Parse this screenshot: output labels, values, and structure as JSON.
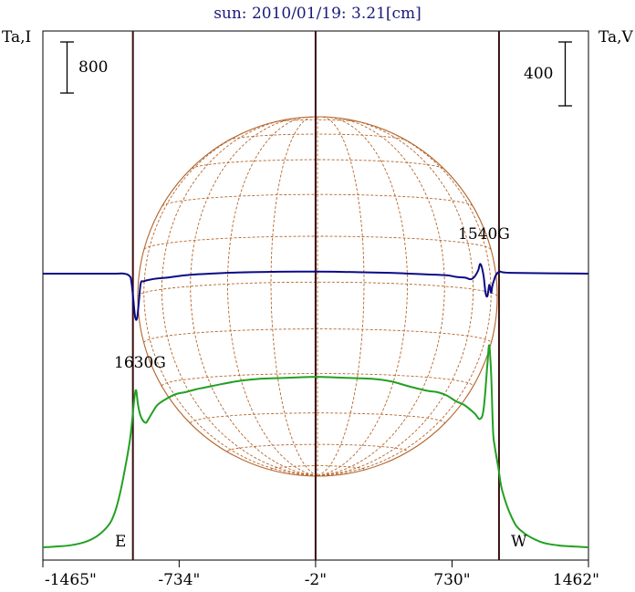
{
  "chart_data": {
    "type": "line",
    "title": "sun: 2010/01/19: 3.21[cm]",
    "ylabel_left": "Ta,I",
    "ylabel_right": "Ta,V",
    "scale_bar_left": "800",
    "scale_bar_right": "400",
    "x_ticks": [
      {
        "value": -1465,
        "label": "-1465\""
      },
      {
        "value": -734,
        "label": "-734\""
      },
      {
        "value": -2,
        "label": "-2\""
      },
      {
        "value": 730,
        "label": "730\""
      },
      {
        "value": 1462,
        "label": "1462\""
      }
    ],
    "xlim": [
      -1465,
      1462
    ],
    "limb_markers": {
      "east": "E",
      "west": "W"
    },
    "limb_positions": [
      -982,
      982
    ],
    "annotations": [
      {
        "text": "1630G",
        "x": -975
      },
      {
        "text": "1540G",
        "x": 917
      }
    ],
    "colors": {
      "intensity": "#22a022",
      "polarization": "#0b0b86",
      "grid": "#b5652c",
      "limb_line": "#3a0e0e",
      "title": "#1a1a7a"
    },
    "series": [
      {
        "name": "Ta,I",
        "color": "#22a022",
        "x": [
          -1465,
          -1400,
          -1300,
          -1200,
          -1120,
          -1080,
          -1050,
          -1020,
          -1000,
          -990,
          -975,
          -965,
          -955,
          -940,
          -915,
          -900,
          -880,
          -850,
          -800,
          -750,
          -700,
          -650,
          -600,
          -500,
          -400,
          -300,
          -200,
          -100,
          0,
          100,
          200,
          300,
          400,
          500,
          600,
          650,
          700,
          750,
          800,
          850,
          880,
          900,
          920,
          930,
          940,
          950,
          960,
          980,
          1000,
          1050,
          1100,
          1200,
          1300,
          1400,
          1462
        ],
        "y": [
          0,
          12,
          40,
          130,
          320,
          540,
          860,
          1300,
          1640,
          1870,
          2310,
          2460,
          2240,
          2050,
          1950,
          2000,
          2100,
          2230,
          2330,
          2400,
          2430,
          2470,
          2500,
          2560,
          2610,
          2640,
          2650,
          2660,
          2670,
          2660,
          2650,
          2640,
          2600,
          2520,
          2450,
          2430,
          2380,
          2290,
          2220,
          2100,
          2010,
          2180,
          2880,
          3160,
          2690,
          1830,
          1570,
          1220,
          880,
          470,
          260,
          90,
          30,
          10,
          0
        ]
      },
      {
        "name": "Ta,V",
        "color": "#0b0b86",
        "x": [
          -1465,
          -1100,
          -1030,
          -1000,
          -990,
          -980,
          -970,
          -960,
          -950,
          -940,
          -925,
          -900,
          -850,
          -800,
          -700,
          -600,
          -400,
          -200,
          0,
          200,
          400,
          500,
          600,
          700,
          750,
          800,
          830,
          850,
          870,
          880,
          890,
          900,
          910,
          920,
          930,
          940,
          950,
          980,
          1050,
          1462
        ],
        "y": [
          0,
          0,
          0,
          -15,
          -50,
          -160,
          -270,
          -280,
          -175,
          -60,
          -48,
          -40,
          -30,
          -25,
          -10,
          -2,
          8,
          12,
          13,
          10,
          5,
          0,
          -5,
          -10,
          -20,
          -25,
          -35,
          -20,
          20,
          60,
          40,
          -20,
          -120,
          -140,
          -70,
          -120,
          -60,
          10,
          5,
          0
        ]
      }
    ],
    "intensity_zero": 0,
    "intensity_per_800": 800,
    "polarization_per_400": 400
  }
}
